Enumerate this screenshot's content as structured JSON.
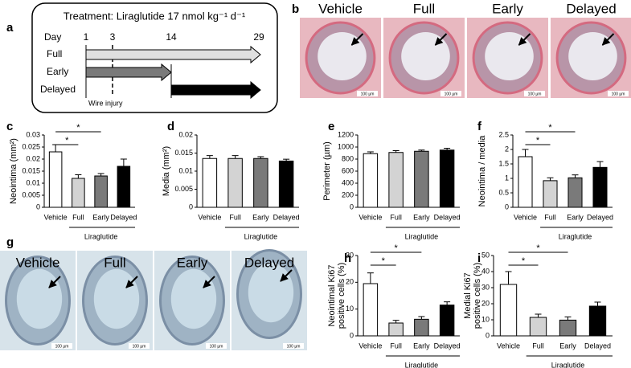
{
  "diagram": {
    "letter": "a",
    "title": "Treatment: Liraglutide 17 nmol kg⁻¹ d⁻¹",
    "day_label": "Day",
    "days": [
      "1",
      "3",
      "14",
      "29"
    ],
    "rows": [
      "Full",
      "Early",
      "Delayed"
    ],
    "event": "Wire injury"
  },
  "images_b": {
    "letter": "b",
    "labels": [
      "Vehicle",
      "Full",
      "Early",
      "Delayed"
    ],
    "scale": "100 µm"
  },
  "images_g": {
    "letter": "g",
    "labels": [
      "Vehicle",
      "Full",
      "Early",
      "Delayed"
    ],
    "scale": "100 µm"
  },
  "chart_data": [
    {
      "type": "bar",
      "letter": "c",
      "ylabel": [
        "Neointima (mm²)"
      ],
      "categories": [
        "Vehicle",
        "Full",
        "Early",
        "Delayed"
      ],
      "group_label": "Liraglutide",
      "values": [
        0.023,
        0.012,
        0.013,
        0.017
      ],
      "errors": [
        0.003,
        0.0015,
        0.001,
        0.003
      ],
      "colors": [
        "#ffffff",
        "#d3d3d3",
        "#7a7a7a",
        "#000000"
      ],
      "ylim": [
        0,
        0.03
      ],
      "yticks": [
        0,
        0.005,
        0.01,
        0.015,
        0.02,
        0.025,
        0.03
      ],
      "significance": [
        {
          "label": "*",
          "between": [
            "Vehicle",
            "Full"
          ]
        },
        {
          "label": "*",
          "between": [
            "Vehicle",
            "Early"
          ]
        }
      ]
    },
    {
      "type": "bar",
      "letter": "d",
      "ylabel": [
        "Media (mm²)"
      ],
      "categories": [
        "Vehicle",
        "Full",
        "Early",
        "Delayed"
      ],
      "group_label": "Liraglutide",
      "values": [
        0.0135,
        0.0135,
        0.0135,
        0.0128
      ],
      "errors": [
        0.0008,
        0.0008,
        0.0005,
        0.0005
      ],
      "colors": [
        "#ffffff",
        "#d3d3d3",
        "#7a7a7a",
        "#000000"
      ],
      "ylim": [
        0,
        0.02
      ],
      "yticks": [
        0,
        0.005,
        0.01,
        0.015,
        0.02
      ],
      "significance": []
    },
    {
      "type": "bar",
      "letter": "e",
      "ylabel": [
        "Perimeter (µm)"
      ],
      "categories": [
        "Vehicle",
        "Full",
        "Early",
        "Delayed"
      ],
      "group_label": "Liraglutide",
      "values": [
        890,
        910,
        930,
        950
      ],
      "errors": [
        30,
        30,
        20,
        30
      ],
      "colors": [
        "#ffffff",
        "#d3d3d3",
        "#7a7a7a",
        "#000000"
      ],
      "ylim": [
        0,
        1200
      ],
      "yticks": [
        0,
        200,
        400,
        600,
        800,
        1000,
        1200
      ],
      "significance": []
    },
    {
      "type": "bar",
      "letter": "f",
      "ylabel": [
        "Neointima / media"
      ],
      "categories": [
        "Vehicle",
        "Full",
        "Early",
        "Delayed"
      ],
      "group_label": "Liraglutide",
      "values": [
        1.75,
        0.92,
        1.02,
        1.38
      ],
      "errors": [
        0.25,
        0.1,
        0.1,
        0.2
      ],
      "colors": [
        "#ffffff",
        "#d3d3d3",
        "#7a7a7a",
        "#000000"
      ],
      "ylim": [
        0,
        2.5
      ],
      "yticks": [
        0,
        0.5,
        1,
        1.5,
        2,
        2.5
      ],
      "significance": [
        {
          "label": "*",
          "between": [
            "Vehicle",
            "Full"
          ]
        },
        {
          "label": "*",
          "between": [
            "Vehicle",
            "Early"
          ]
        }
      ]
    },
    {
      "type": "bar",
      "letter": "h",
      "ylabel": [
        "Neointimal Ki67",
        "positive cells (%)"
      ],
      "categories": [
        "Vehicle",
        "Full",
        "Early",
        "Delayed"
      ],
      "group_label": "Liraglutide",
      "values": [
        19.5,
        4.8,
        6.2,
        11.5
      ],
      "errors": [
        4,
        1,
        1,
        1.2
      ],
      "colors": [
        "#ffffff",
        "#d3d3d3",
        "#7a7a7a",
        "#000000"
      ],
      "ylim": [
        0,
        30
      ],
      "yticks": [
        0,
        10,
        20,
        30
      ],
      "significance": [
        {
          "label": "*",
          "between": [
            "Vehicle",
            "Full"
          ]
        },
        {
          "label": "*",
          "between": [
            "Vehicle",
            "Early"
          ]
        }
      ]
    },
    {
      "type": "bar",
      "letter": "i",
      "ylabel": [
        "Medial Ki67",
        "positive cells (%)"
      ],
      "categories": [
        "Vehicle",
        "Full",
        "Early",
        "Delayed"
      ],
      "group_label": "Liraglutide",
      "values": [
        32,
        11.5,
        9.8,
        18.5
      ],
      "errors": [
        8,
        2,
        2,
        2.5
      ],
      "colors": [
        "#ffffff",
        "#d3d3d3",
        "#7a7a7a",
        "#000000"
      ],
      "ylim": [
        0,
        50
      ],
      "yticks": [
        0,
        10,
        20,
        30,
        40,
        50
      ],
      "significance": [
        {
          "label": "*",
          "between": [
            "Vehicle",
            "Full"
          ]
        },
        {
          "label": "*",
          "between": [
            "Vehicle",
            "Early"
          ]
        }
      ]
    }
  ]
}
